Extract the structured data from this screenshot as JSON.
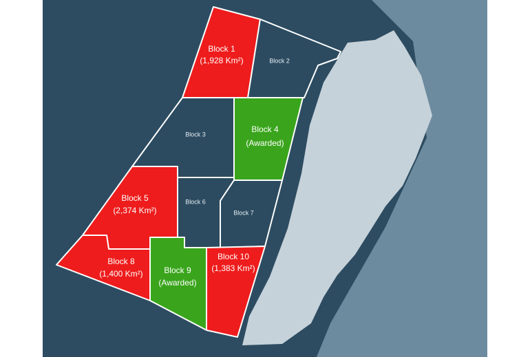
{
  "blocks": [
    {
      "name": "Block 1",
      "detail": "(1,928 Km²)"
    },
    {
      "name": "Block 2"
    },
    {
      "name": "Block 3"
    },
    {
      "name": "Block 4",
      "detail": "(Awarded)"
    },
    {
      "name": "Block 5",
      "detail": "(2,374 Km²)"
    },
    {
      "name": "Block 6"
    },
    {
      "name": "Block 7"
    },
    {
      "name": "Block 8",
      "detail": "(1,400 Km²)"
    },
    {
      "name": "Block 9",
      "detail": "(Awarded)"
    },
    {
      "name": "Block 10",
      "detail": "(1,383 Km²)"
    }
  ]
}
